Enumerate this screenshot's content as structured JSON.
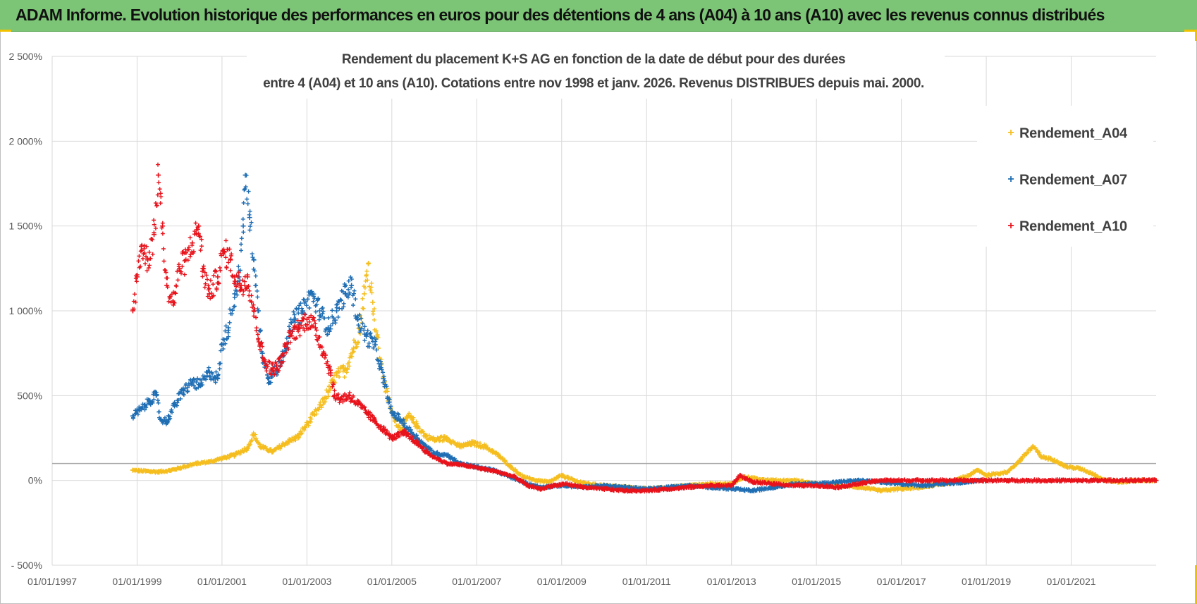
{
  "header": {
    "title": "ADAM Informe. Evolution historique des performances en euros pour des détentions de 4 ans (A04) à 10 ans (A10) avec les revenus connus distribués"
  },
  "chart_data": {
    "type": "scatter",
    "title_lines": [
      "Rendement du placement K+S AG en fonction de la date de début pour des durées",
      "entre 4 (A04) et 10 ans (A10). Cotations entre nov 1998 et janv. 2026. Revenus DISTRIBUES depuis mai. 2000."
    ],
    "xlabel": "",
    "ylabel": "",
    "ylim": [
      -500,
      2500
    ],
    "xlim": [
      1997.0,
      2023.0
    ],
    "y_ticks": [
      {
        "value": 2500,
        "label": "2 500%"
      },
      {
        "value": 2000,
        "label": "2 000%"
      },
      {
        "value": 1500,
        "label": "1 500%"
      },
      {
        "value": 1000,
        "label": "1 000%"
      },
      {
        "value": 500,
        "label": "500%"
      },
      {
        "value": 0,
        "label": "0%"
      },
      {
        "value": -500,
        "label": "- 500%"
      }
    ],
    "x_ticks": [
      {
        "value": 1997,
        "label": "01/01/1997"
      },
      {
        "value": 1999,
        "label": "01/01/1999"
      },
      {
        "value": 2001,
        "label": "01/01/2001"
      },
      {
        "value": 2003,
        "label": "01/01/2003"
      },
      {
        "value": 2005,
        "label": "01/01/2005"
      },
      {
        "value": 2007,
        "label": "01/01/2007"
      },
      {
        "value": 2009,
        "label": "01/01/2009"
      },
      {
        "value": 2011,
        "label": "01/01/2011"
      },
      {
        "value": 2013,
        "label": "01/01/2013"
      },
      {
        "value": 2015,
        "label": "01/01/2015"
      },
      {
        "value": 2017,
        "label": "01/01/2017"
      },
      {
        "value": 2019,
        "label": "01/01/2019"
      },
      {
        "value": 2021,
        "label": "01/01/2021"
      }
    ],
    "reference_line": 100,
    "grid": true,
    "legend_position": "top-right",
    "series": [
      {
        "name": "Rendement_A04",
        "color": "#f5be1e",
        "points": [
          [
            1998.9,
            60
          ],
          [
            1999.2,
            55
          ],
          [
            1999.5,
            50
          ],
          [
            1999.8,
            60
          ],
          [
            2000.1,
            80
          ],
          [
            2000.4,
            100
          ],
          [
            2000.7,
            110
          ],
          [
            2001.0,
            130
          ],
          [
            2001.3,
            150
          ],
          [
            2001.6,
            190
          ],
          [
            2001.75,
            270
          ],
          [
            2001.9,
            200
          ],
          [
            2002.2,
            170
          ],
          [
            2002.5,
            220
          ],
          [
            2002.8,
            260
          ],
          [
            2003.0,
            330
          ],
          [
            2003.3,
            430
          ],
          [
            2003.5,
            520
          ],
          [
            2003.7,
            620
          ],
          [
            2003.9,
            650
          ],
          [
            2004.1,
            780
          ],
          [
            2004.25,
            900
          ],
          [
            2004.35,
            1100
          ],
          [
            2004.45,
            1280
          ],
          [
            2004.55,
            1050
          ],
          [
            2004.65,
            850
          ],
          [
            2004.8,
            600
          ],
          [
            2005.0,
            400
          ],
          [
            2005.2,
            300
          ],
          [
            2005.4,
            380
          ],
          [
            2005.6,
            320
          ],
          [
            2005.8,
            260
          ],
          [
            2006.0,
            240
          ],
          [
            2006.3,
            250
          ],
          [
            2006.6,
            200
          ],
          [
            2006.9,
            220
          ],
          [
            2007.2,
            200
          ],
          [
            2007.5,
            150
          ],
          [
            2007.8,
            80
          ],
          [
            2008.1,
            20
          ],
          [
            2008.4,
            0
          ],
          [
            2008.7,
            -10
          ],
          [
            2009.0,
            30
          ],
          [
            2009.3,
            0
          ],
          [
            2009.6,
            -20
          ],
          [
            2010.0,
            -30
          ],
          [
            2010.5,
            -40
          ],
          [
            2011.0,
            -50
          ],
          [
            2011.5,
            -40
          ],
          [
            2012.0,
            -30
          ],
          [
            2012.5,
            -20
          ],
          [
            2013.0,
            -20
          ],
          [
            2013.3,
            20
          ],
          [
            2013.6,
            10
          ],
          [
            2014.0,
            0
          ],
          [
            2014.5,
            0
          ],
          [
            2015.0,
            -20
          ],
          [
            2015.5,
            -30
          ],
          [
            2016.0,
            -40
          ],
          [
            2016.5,
            -60
          ],
          [
            2017.0,
            -50
          ],
          [
            2017.5,
            -40
          ],
          [
            2018.0,
            -20
          ],
          [
            2018.5,
            20
          ],
          [
            2018.8,
            60
          ],
          [
            2019.0,
            30
          ],
          [
            2019.5,
            50
          ],
          [
            2019.8,
            120
          ],
          [
            2020.1,
            200
          ],
          [
            2020.3,
            140
          ],
          [
            2020.6,
            120
          ],
          [
            2020.9,
            80
          ],
          [
            2021.2,
            70
          ],
          [
            2021.5,
            40
          ],
          [
            2021.8,
            0
          ],
          [
            2022.2,
            -10
          ],
          [
            2022.5,
            0
          ],
          [
            2023.0,
            0
          ]
        ]
      },
      {
        "name": "Rendement_A07",
        "color": "#1f6eb4",
        "points": [
          [
            1998.9,
            380
          ],
          [
            1999.1,
            420
          ],
          [
            1999.3,
            470
          ],
          [
            1999.45,
            500
          ],
          [
            1999.55,
            360
          ],
          [
            1999.7,
            350
          ],
          [
            1999.9,
            450
          ],
          [
            2000.1,
            530
          ],
          [
            2000.3,
            580
          ],
          [
            2000.5,
            560
          ],
          [
            2000.7,
            640
          ],
          [
            2000.9,
            600
          ],
          [
            2001.0,
            800
          ],
          [
            2001.15,
            900
          ],
          [
            2001.3,
            1100
          ],
          [
            2001.4,
            1200
          ],
          [
            2001.5,
            1500
          ],
          [
            2001.55,
            1800
          ],
          [
            2001.65,
            1550
          ],
          [
            2001.75,
            1300
          ],
          [
            2001.85,
            1000
          ],
          [
            2001.95,
            750
          ],
          [
            2002.1,
            600
          ],
          [
            2002.3,
            650
          ],
          [
            2002.5,
            800
          ],
          [
            2002.7,
            950
          ],
          [
            2002.9,
            1000
          ],
          [
            2003.1,
            1100
          ],
          [
            2003.3,
            1000
          ],
          [
            2003.5,
            900
          ],
          [
            2003.7,
            1000
          ],
          [
            2003.9,
            1100
          ],
          [
            2004.05,
            1150
          ],
          [
            2004.2,
            950
          ],
          [
            2004.4,
            850
          ],
          [
            2004.6,
            800
          ],
          [
            2004.8,
            600
          ],
          [
            2005.0,
            400
          ],
          [
            2005.2,
            360
          ],
          [
            2005.4,
            300
          ],
          [
            2005.6,
            250
          ],
          [
            2005.8,
            200
          ],
          [
            2006.0,
            160
          ],
          [
            2006.3,
            150
          ],
          [
            2006.6,
            100
          ],
          [
            2007.0,
            80
          ],
          [
            2007.4,
            60
          ],
          [
            2007.8,
            20
          ],
          [
            2008.2,
            -20
          ],
          [
            2008.5,
            -40
          ],
          [
            2009.0,
            -30
          ],
          [
            2009.5,
            -40
          ],
          [
            2010.0,
            -30
          ],
          [
            2010.5,
            -40
          ],
          [
            2011.0,
            -50
          ],
          [
            2011.5,
            -40
          ],
          [
            2012.0,
            -30
          ],
          [
            2012.5,
            -40
          ],
          [
            2013.0,
            -50
          ],
          [
            2013.5,
            -60
          ],
          [
            2014.0,
            -40
          ],
          [
            2014.5,
            -20
          ],
          [
            2015.0,
            -20
          ],
          [
            2015.5,
            -10
          ],
          [
            2016.0,
            0
          ],
          [
            2016.5,
            -10
          ],
          [
            2017.0,
            -20
          ],
          [
            2017.5,
            -30
          ],
          [
            2018.0,
            -20
          ],
          [
            2018.5,
            -10
          ],
          [
            2018.9,
            0
          ]
        ]
      },
      {
        "name": "Rendement_A10",
        "color": "#e8121b",
        "points": [
          [
            1998.9,
            1000
          ],
          [
            1999.0,
            1200
          ],
          [
            1999.1,
            1380
          ],
          [
            1999.25,
            1300
          ],
          [
            1999.4,
            1450
          ],
          [
            1999.5,
            1800
          ],
          [
            1999.6,
            1500
          ],
          [
            1999.7,
            1150
          ],
          [
            1999.85,
            1050
          ],
          [
            2000.0,
            1250
          ],
          [
            2000.15,
            1300
          ],
          [
            2000.3,
            1400
          ],
          [
            2000.45,
            1500
          ],
          [
            2000.55,
            1250
          ],
          [
            2000.7,
            1100
          ],
          [
            2000.9,
            1200
          ],
          [
            2001.05,
            1350
          ],
          [
            2001.2,
            1300
          ],
          [
            2001.3,
            1200
          ],
          [
            2001.45,
            1150
          ],
          [
            2001.6,
            1200
          ],
          [
            2001.75,
            1000
          ],
          [
            2001.9,
            800
          ],
          [
            2002.0,
            700
          ],
          [
            2002.2,
            650
          ],
          [
            2002.4,
            700
          ],
          [
            2002.6,
            850
          ],
          [
            2002.8,
            900
          ],
          [
            2003.0,
            950
          ],
          [
            2003.2,
            900
          ],
          [
            2003.4,
            750
          ],
          [
            2003.55,
            650
          ],
          [
            2003.65,
            500
          ],
          [
            2003.8,
            480
          ],
          [
            2004.0,
            500
          ],
          [
            2004.2,
            450
          ],
          [
            2004.4,
            400
          ],
          [
            2004.6,
            350
          ],
          [
            2004.8,
            300
          ],
          [
            2005.0,
            250
          ],
          [
            2005.3,
            280
          ],
          [
            2005.6,
            220
          ],
          [
            2005.9,
            150
          ],
          [
            2006.3,
            100
          ],
          [
            2006.7,
            90
          ],
          [
            2007.1,
            70
          ],
          [
            2007.5,
            50
          ],
          [
            2007.9,
            20
          ],
          [
            2008.2,
            -30
          ],
          [
            2008.5,
            -50
          ],
          [
            2008.8,
            -30
          ],
          [
            2009.1,
            -20
          ],
          [
            2009.5,
            -40
          ],
          [
            2010.0,
            -50
          ],
          [
            2010.5,
            -60
          ],
          [
            2011.0,
            -60
          ],
          [
            2011.5,
            -50
          ],
          [
            2012.0,
            -40
          ],
          [
            2012.5,
            -30
          ],
          [
            2013.0,
            -30
          ],
          [
            2013.2,
            30
          ],
          [
            2013.5,
            -10
          ],
          [
            2014.0,
            -20
          ],
          [
            2014.5,
            -30
          ],
          [
            2015.0,
            -30
          ],
          [
            2015.5,
            -40
          ],
          [
            2016.0,
            -20
          ],
          [
            2016.5,
            0
          ],
          [
            2017.0,
            0
          ],
          [
            2017.5,
            0
          ],
          [
            2018.0,
            0
          ],
          [
            2018.5,
            0
          ],
          [
            2019.0,
            0
          ],
          [
            2019.5,
            0
          ],
          [
            2020.0,
            0
          ],
          [
            2020.5,
            0
          ],
          [
            2021.0,
            0
          ],
          [
            2021.5,
            0
          ],
          [
            2022.0,
            0
          ],
          [
            2022.5,
            0
          ],
          [
            2023.0,
            0
          ]
        ]
      }
    ]
  }
}
